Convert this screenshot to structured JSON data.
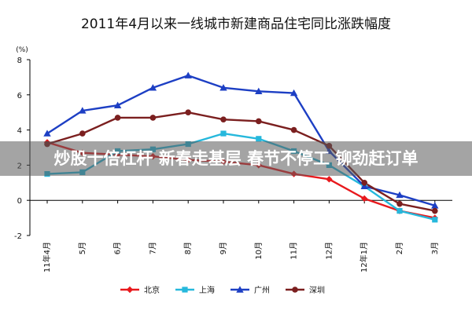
{
  "colors": {
    "beijing": "#e8191d",
    "shanghai": "#26b8dc",
    "guangzhou": "#1d3fc4",
    "shenzhen": "#7b1f1f"
  },
  "overlay_banner": "炒股十倍杠杆 新春走基层  春节不停工 铆劲赶订单",
  "chart_data": {
    "type": "line",
    "title": "2011年4月以来一线城市新建商品住宅同比涨跌幅度",
    "unit_label": "(%)",
    "categories": [
      "11年4月",
      "5月",
      "6月",
      "7月",
      "8月",
      "9月",
      "10月",
      "11月",
      "12月",
      "12年1月",
      "2月",
      "3月"
    ],
    "ylim": [
      -2,
      8
    ],
    "yticks": [
      -2,
      0,
      2,
      4,
      6,
      8
    ],
    "grid": false,
    "legend_position": "bottom",
    "series": [
      {
        "name": "北京",
        "key": "beijing",
        "marker": "diamond",
        "values": [
          3.3,
          2.7,
          2.6,
          2.5,
          2.3,
          2.2,
          2.0,
          1.5,
          1.2,
          0.1,
          -0.6,
          -1.0
        ]
      },
      {
        "name": "上海",
        "key": "shanghai",
        "marker": "square",
        "values": [
          1.5,
          1.6,
          2.8,
          2.9,
          3.2,
          3.8,
          3.5,
          2.8,
          2.0,
          0.8,
          -0.6,
          -1.1
        ]
      },
      {
        "name": "广州",
        "key": "guangzhou",
        "marker": "triangle",
        "values": [
          3.8,
          5.1,
          5.4,
          6.4,
          7.1,
          6.4,
          6.2,
          6.1,
          2.8,
          0.8,
          0.3,
          -0.3
        ]
      },
      {
        "name": "深圳",
        "key": "shenzhen",
        "marker": "circle",
        "values": [
          3.2,
          3.8,
          4.7,
          4.7,
          5.0,
          4.6,
          4.5,
          4.0,
          3.1,
          1.0,
          -0.2,
          -0.6
        ]
      }
    ]
  }
}
